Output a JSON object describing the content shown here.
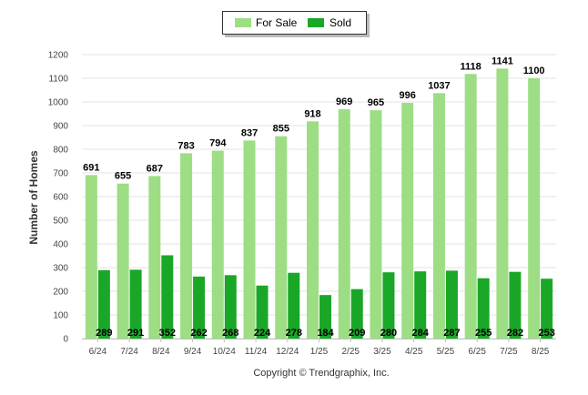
{
  "chart_data": {
    "type": "bar",
    "categories": [
      "6/24",
      "7/24",
      "8/24",
      "9/24",
      "10/24",
      "11/24",
      "12/24",
      "1/25",
      "2/25",
      "3/25",
      "4/25",
      "5/25",
      "6/25",
      "7/25",
      "8/25"
    ],
    "series": [
      {
        "name": "For Sale",
        "color": "#9ddd84",
        "values": [
          691,
          655,
          687,
          783,
          794,
          837,
          855,
          918,
          969,
          965,
          996,
          1037,
          1118,
          1141,
          1100
        ]
      },
      {
        "name": "Sold",
        "color": "#1aa727",
        "values": [
          289,
          291,
          352,
          262,
          268,
          224,
          278,
          184,
          209,
          280,
          284,
          287,
          255,
          282,
          253
        ]
      }
    ],
    "title": "",
    "xlabel": "",
    "ylabel": "Number of Homes",
    "ylim": [
      0,
      1200
    ],
    "yticks": [
      0,
      100,
      200,
      300,
      400,
      500,
      600,
      700,
      800,
      900,
      1000,
      1100,
      1200
    ],
    "grid": true,
    "legend": "top-center",
    "credit": "Copyright © Trendgraphix, Inc."
  }
}
